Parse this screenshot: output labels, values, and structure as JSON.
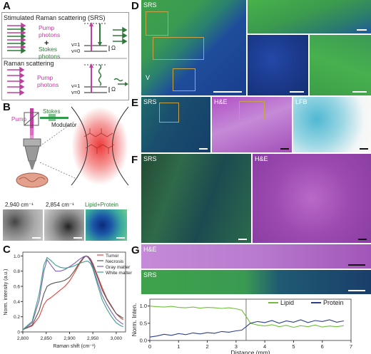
{
  "panels": {
    "A": {
      "letter": "A",
      "srs_title": "Stimulated Raman scattering (SRS)",
      "pump_photons": "Pump\nphotons",
      "plus": "+",
      "stokes_photons": "Stokes\nphotons",
      "v1": "v=1",
      "v0": "v=0",
      "omega": "Ω",
      "raman_title": "Raman scattering",
      "raman_pump": "Pump\nphotons",
      "v1b": "v=1",
      "v0b": "v=0",
      "omega_b": "Ω"
    },
    "B": {
      "letter": "B",
      "pump": "Pump",
      "stokes": "Stokes",
      "modulator": "Modulator",
      "img1": "2,940 cm⁻¹",
      "img2": "2,854 cm⁻¹",
      "img3": "Lipid+Protein"
    },
    "C": {
      "letter": "C"
    },
    "D": {
      "letter": "D",
      "label": "SRS",
      "v_mark": "V"
    },
    "E": {
      "letter": "E",
      "labels": [
        "SRS",
        "H&E",
        "LFB"
      ]
    },
    "F": {
      "letter": "F",
      "labels": [
        "SRS",
        "H&E"
      ]
    },
    "G": {
      "letter": "G",
      "he": "H&E",
      "srs": "SRS"
    }
  },
  "chart_data": [
    {
      "type": "line",
      "panel": "C",
      "xlabel": "Raman shift (cm⁻¹)",
      "ylabel": "Norm. intensity (a.u.)",
      "xlim": [
        2800,
        3020
      ],
      "ylim": [
        0,
        1.05
      ],
      "xticks": [
        2800,
        2850,
        2900,
        2950,
        3000
      ],
      "xtick_labels": [
        "2,800",
        "2,850",
        "2,900",
        "2,950",
        "3,000"
      ],
      "yticks": [
        0,
        0.2,
        0.4,
        0.6,
        0.8,
        1.0
      ],
      "ytick_labels": [
        "0",
        "0.2",
        "0.4",
        "0.6",
        "0.8",
        "1.0"
      ],
      "legend_position": "top-right",
      "series": [
        {
          "name": "Tumor",
          "color": "#e2453a",
          "x": [
            2800,
            2820,
            2835,
            2845,
            2852,
            2860,
            2870,
            2880,
            2890,
            2900,
            2910,
            2920,
            2930,
            2935,
            2940,
            2945,
            2950,
            2960,
            2970,
            2980,
            2990,
            3000,
            3010,
            3015
          ],
          "y": [
            0.03,
            0.08,
            0.2,
            0.36,
            0.42,
            0.45,
            0.5,
            0.55,
            0.6,
            0.67,
            0.77,
            0.88,
            0.97,
            1.0,
            0.99,
            0.96,
            0.9,
            0.74,
            0.58,
            0.44,
            0.34,
            0.24,
            0.18,
            0.16
          ]
        },
        {
          "name": "Necrosis",
          "color": "#555555",
          "x": [
            2800,
            2820,
            2835,
            2845,
            2852,
            2860,
            2870,
            2880,
            2890,
            2900,
            2910,
            2920,
            2930,
            2935,
            2940,
            2945,
            2950,
            2960,
            2970,
            2980,
            2990,
            3000,
            3010,
            3015
          ],
          "y": [
            0.03,
            0.09,
            0.28,
            0.5,
            0.6,
            0.63,
            0.65,
            0.66,
            0.68,
            0.72,
            0.8,
            0.9,
            0.98,
            1.0,
            0.99,
            0.95,
            0.88,
            0.72,
            0.55,
            0.43,
            0.33,
            0.24,
            0.2,
            0.18
          ]
        },
        {
          "name": "Gray matter",
          "color": "#8060b0",
          "x": [
            2800,
            2820,
            2835,
            2845,
            2852,
            2860,
            2870,
            2880,
            2890,
            2900,
            2910,
            2920,
            2930,
            2935,
            2940,
            2945,
            2950,
            2960,
            2970,
            2980,
            2990,
            3000,
            3010,
            3015
          ],
          "y": [
            0.03,
            0.12,
            0.42,
            0.8,
            0.95,
            0.88,
            0.8,
            0.8,
            0.82,
            0.86,
            0.9,
            0.95,
            0.99,
            1.0,
            0.98,
            0.93,
            0.85,
            0.66,
            0.48,
            0.36,
            0.26,
            0.17,
            0.12,
            0.1
          ]
        },
        {
          "name": "White matter",
          "color": "#3aa08a",
          "x": [
            2800,
            2820,
            2835,
            2845,
            2852,
            2860,
            2870,
            2880,
            2890,
            2900,
            2910,
            2920,
            2930,
            2935,
            2940,
            2945,
            2950,
            2960,
            2970,
            2980,
            2990,
            3000,
            3010,
            3015
          ],
          "y": [
            0.03,
            0.14,
            0.5,
            0.88,
            0.98,
            0.94,
            0.88,
            0.85,
            0.84,
            0.85,
            0.87,
            0.9,
            0.92,
            0.93,
            0.93,
            0.9,
            0.83,
            0.62,
            0.42,
            0.3,
            0.2,
            0.12,
            0.08,
            0.07
          ]
        }
      ]
    },
    {
      "type": "line",
      "panel": "G",
      "xlabel": "Distance (mm)",
      "ylabel": "Norm. Inten.",
      "xlim": [
        0,
        7
      ],
      "ylim": [
        0,
        1.2
      ],
      "xticks": [
        0,
        1,
        2,
        3,
        4,
        5,
        6,
        7
      ],
      "yticks": [
        0,
        0.5,
        1.0
      ],
      "ytick_labels": [
        "0.0",
        "0.5",
        "1.0"
      ],
      "marker_x": 3.35,
      "legend_position": "top-right",
      "series": [
        {
          "name": "Lipid",
          "color": "#6fbf3a",
          "x": [
            0,
            0.25,
            0.5,
            0.75,
            1,
            1.25,
            1.5,
            1.75,
            2,
            2.25,
            2.5,
            2.75,
            3,
            3.2,
            3.35,
            3.5,
            3.75,
            4,
            4.25,
            4.5,
            4.75,
            5,
            5.25,
            5.5,
            5.75,
            6,
            6.25,
            6.5,
            6.75
          ],
          "y": [
            1.0,
            0.98,
            0.97,
            0.99,
            0.96,
            0.95,
            0.97,
            0.94,
            0.96,
            0.95,
            0.93,
            0.95,
            0.92,
            0.88,
            0.7,
            0.5,
            0.45,
            0.42,
            0.46,
            0.4,
            0.44,
            0.38,
            0.43,
            0.4,
            0.45,
            0.39,
            0.42,
            0.4,
            0.43
          ]
        },
        {
          "name": "Protein",
          "color": "#2d3f8c",
          "x": [
            0,
            0.25,
            0.5,
            0.75,
            1,
            1.25,
            1.5,
            1.75,
            2,
            2.25,
            2.5,
            2.75,
            3,
            3.2,
            3.35,
            3.5,
            3.75,
            4,
            4.25,
            4.5,
            4.75,
            5,
            5.25,
            5.5,
            5.75,
            6,
            6.25,
            6.5,
            6.75
          ],
          "y": [
            0.1,
            0.13,
            0.18,
            0.15,
            0.2,
            0.17,
            0.22,
            0.19,
            0.23,
            0.21,
            0.26,
            0.24,
            0.28,
            0.3,
            0.4,
            0.5,
            0.55,
            0.52,
            0.58,
            0.5,
            0.57,
            0.53,
            0.6,
            0.52,
            0.58,
            0.55,
            0.6,
            0.53,
            0.57
          ]
        }
      ]
    }
  ]
}
